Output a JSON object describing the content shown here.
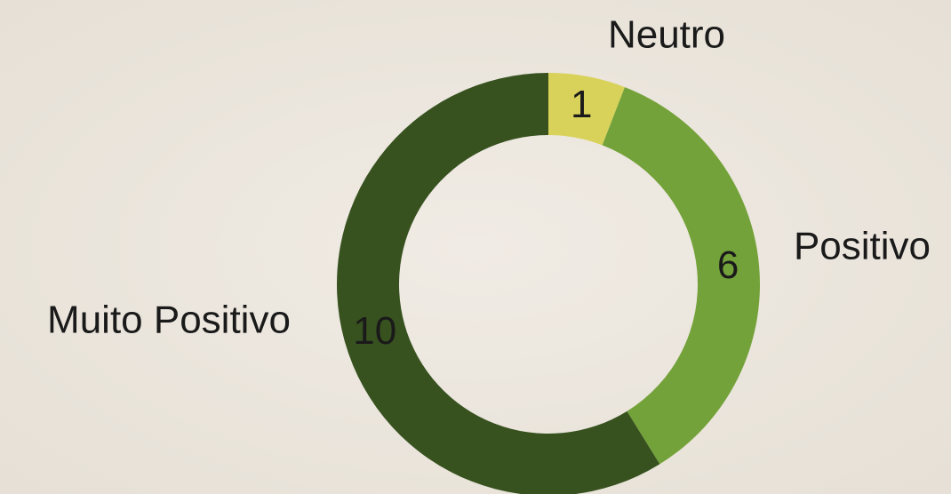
{
  "chart_data": {
    "type": "donut",
    "categories": [
      "Neutro",
      "Positivo",
      "Muito Positivo"
    ],
    "values": [
      1,
      6,
      10
    ],
    "colors": [
      "#d9d25a",
      "#74a23a",
      "#37521f"
    ]
  }
}
